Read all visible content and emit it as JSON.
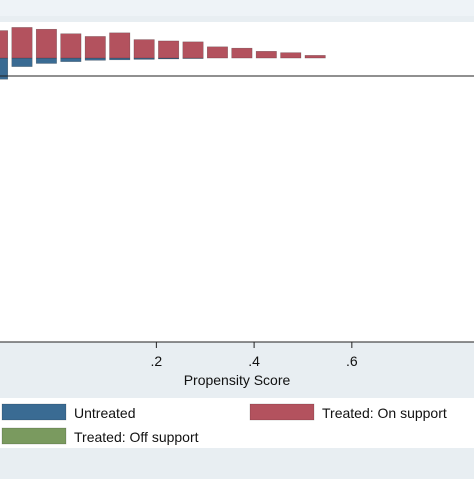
{
  "chart_data": {
    "type": "bar",
    "subtype": "mirrored-histogram",
    "title": "",
    "xlabel": "Propensity Score",
    "ylabel": "",
    "xlim": [
      -0.12,
      0.85
    ],
    "xticks": [
      0.2,
      0.4,
      0.6
    ],
    "xtick_labels": [
      ".2",
      ".4",
      ".6"
    ],
    "bin_width": 0.05,
    "ylim": [
      -0.63,
      0.08
    ],
    "grid": false,
    "legend_placement": "bottom",
    "series": [
      {
        "name": "Untreated",
        "color": "#3a6b93",
        "direction": "down",
        "bins": [
          {
            "x0": -0.15,
            "value": 0.047
          },
          {
            "x0": -0.1,
            "value": 0.019
          },
          {
            "x0": -0.05,
            "value": 0.012
          },
          {
            "x0": 0.0,
            "value": 0.008
          },
          {
            "x0": 0.05,
            "value": 0.005
          },
          {
            "x0": 0.1,
            "value": 0.004
          },
          {
            "x0": 0.15,
            "value": 0.003
          },
          {
            "x0": 0.2,
            "value": 0.002
          },
          {
            "x0": 0.25,
            "value": 0.001
          }
        ]
      },
      {
        "name": "Treated: On support",
        "color": "#b3525e",
        "direction": "up",
        "bins": [
          {
            "x0": -0.15,
            "value": 0.061
          },
          {
            "x0": -0.1,
            "value": 0.068
          },
          {
            "x0": -0.05,
            "value": 0.064
          },
          {
            "x0": 0.0,
            "value": 0.054
          },
          {
            "x0": 0.05,
            "value": 0.048
          },
          {
            "x0": 0.1,
            "value": 0.056
          },
          {
            "x0": 0.15,
            "value": 0.041
          },
          {
            "x0": 0.2,
            "value": 0.038
          },
          {
            "x0": 0.25,
            "value": 0.036
          },
          {
            "x0": 0.3,
            "value": 0.025
          },
          {
            "x0": 0.35,
            "value": 0.022
          },
          {
            "x0": 0.4,
            "value": 0.015
          },
          {
            "x0": 0.45,
            "value": 0.012
          },
          {
            "x0": 0.5,
            "value": 0.006
          }
        ]
      },
      {
        "name": "Treated: Off support",
        "color": "#7a9a5f",
        "direction": "up",
        "bins": []
      }
    ]
  }
}
